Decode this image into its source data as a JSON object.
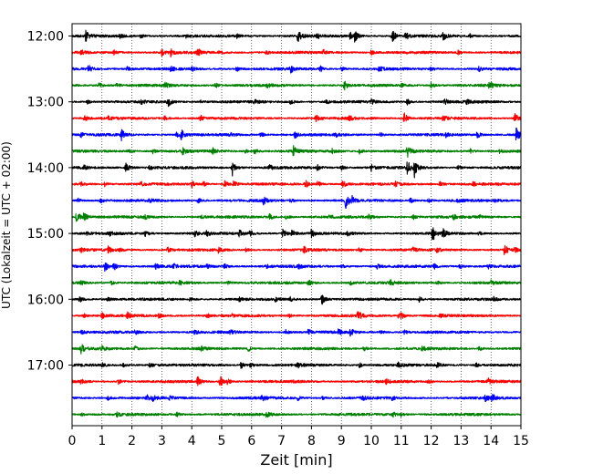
{
  "chart_data": {
    "type": "line",
    "chart_kind": "seismic helicorder (drum plot)",
    "title": "",
    "xlabel": "Zeit  [min]",
    "ylabel": "UTC (Lokalzeit = UTC + 02:00)",
    "xlim": [
      0,
      15
    ],
    "x_ticks": [
      0,
      1,
      2,
      3,
      4,
      5,
      6,
      7,
      8,
      9,
      10,
      11,
      12,
      13,
      14,
      15
    ],
    "x_tick_labels": [
      "0",
      "1",
      "2",
      "3",
      "4",
      "5",
      "6",
      "7",
      "8",
      "9",
      "10",
      "11",
      "12",
      "13",
      "14",
      "15"
    ],
    "y_ticks": [
      {
        "label": "12:00",
        "minutes_after_start": 0
      },
      {
        "label": "13:00",
        "minutes_after_start": 60
      },
      {
        "label": "14:00",
        "minutes_after_start": 120
      },
      {
        "label": "15:00",
        "minutes_after_start": 180
      },
      {
        "label": "16:00",
        "minutes_after_start": 240
      },
      {
        "label": "17:00",
        "minutes_after_start": 300
      }
    ],
    "row_minutes": 15,
    "grid": {
      "vertical_dotted_each_minute": true,
      "horizontal": false
    },
    "trace_colors": [
      "#000000",
      "#ff0000",
      "#0000ff",
      "#008000"
    ],
    "traces": [
      {
        "start": "12:00",
        "color_index": 0,
        "events": [
          [
            0.45,
            0.9
          ],
          [
            1.6,
            0.3
          ],
          [
            2.3,
            0.3
          ],
          [
            3.8,
            0.25
          ],
          [
            5.5,
            0.3
          ],
          [
            7.55,
            0.9
          ],
          [
            8.2,
            0.35
          ],
          [
            9.3,
            0.5
          ],
          [
            9.45,
            0.8
          ],
          [
            10.7,
            1.0
          ],
          [
            11.15,
            0.6
          ],
          [
            12.4,
            0.6
          ],
          [
            13.3,
            0.3
          ]
        ]
      },
      {
        "start": "12:15",
        "color_index": 1,
        "events": [
          [
            0.3,
            0.3
          ],
          [
            1.4,
            0.3
          ],
          [
            3.0,
            0.45
          ],
          [
            3.3,
            0.6
          ],
          [
            4.2,
            0.55
          ],
          [
            4.9,
            0.3
          ],
          [
            6.5,
            0.3
          ],
          [
            8.4,
            0.35
          ],
          [
            10.0,
            0.3
          ],
          [
            12.9,
            0.3
          ]
        ]
      },
      {
        "start": "12:30",
        "color_index": 2,
        "events": [
          [
            0.55,
            0.6
          ],
          [
            1.85,
            0.35
          ],
          [
            3.3,
            0.35
          ],
          [
            4.0,
            0.4
          ],
          [
            5.5,
            0.4
          ],
          [
            7.3,
            0.55
          ],
          [
            8.3,
            0.4
          ],
          [
            9.0,
            0.35
          ],
          [
            10.25,
            0.4
          ],
          [
            12.0,
            0.35
          ],
          [
            13.6,
            0.35
          ]
        ]
      },
      {
        "start": "12:45",
        "color_index": 3,
        "events": [
          [
            0.9,
            0.45
          ],
          [
            1.5,
            0.3
          ],
          [
            3.1,
            0.4
          ],
          [
            4.8,
            0.35
          ],
          [
            6.5,
            0.35
          ],
          [
            9.1,
            0.7
          ],
          [
            11.0,
            0.3
          ],
          [
            12.0,
            0.45
          ],
          [
            13.95,
            0.55
          ]
        ]
      },
      {
        "start": "13:00",
        "color_index": 0,
        "events": [
          [
            0.5,
            0.3
          ],
          [
            2.3,
            0.3
          ],
          [
            3.2,
            0.8
          ],
          [
            4.3,
            0.3
          ],
          [
            6.1,
            0.3
          ],
          [
            7.3,
            0.45
          ],
          [
            8.5,
            0.3
          ],
          [
            10.0,
            0.3
          ],
          [
            11.2,
            0.4
          ],
          [
            12.45,
            0.5
          ],
          [
            13.2,
            0.3
          ]
        ]
      },
      {
        "start": "13:15",
        "color_index": 1,
        "events": [
          [
            0.4,
            0.6
          ],
          [
            1.2,
            0.3
          ],
          [
            3.1,
            0.3
          ],
          [
            4.3,
            0.4
          ],
          [
            8.15,
            0.5
          ],
          [
            9.25,
            0.35
          ],
          [
            11.1,
            0.85
          ],
          [
            12.4,
            0.3
          ],
          [
            14.8,
            0.9
          ]
        ]
      },
      {
        "start": "13:30",
        "color_index": 2,
        "events": [
          [
            0.3,
            0.35
          ],
          [
            1.65,
            0.9
          ],
          [
            3.5,
            0.35
          ],
          [
            3.65,
            0.9
          ],
          [
            5.3,
            0.3
          ],
          [
            6.3,
            0.4
          ],
          [
            7.45,
            0.5
          ],
          [
            8.8,
            0.3
          ],
          [
            10.3,
            0.35
          ],
          [
            12.5,
            0.35
          ],
          [
            13.55,
            0.6
          ],
          [
            14.85,
            1.0
          ]
        ]
      },
      {
        "start": "13:45",
        "color_index": 3,
        "events": [
          [
            1.9,
            0.4
          ],
          [
            2.7,
            0.3
          ],
          [
            3.7,
            0.45
          ],
          [
            4.7,
            0.5
          ],
          [
            5.8,
            0.3
          ],
          [
            6.1,
            0.45
          ],
          [
            7.4,
            0.7
          ],
          [
            8.7,
            0.4
          ],
          [
            9.6,
            0.4
          ],
          [
            11.2,
            0.9
          ],
          [
            13.3,
            0.35
          ],
          [
            14.3,
            0.3
          ]
        ]
      },
      {
        "start": "14:00",
        "color_index": 0,
        "events": [
          [
            0.4,
            0.3
          ],
          [
            1.8,
            0.95
          ],
          [
            2.6,
            0.35
          ],
          [
            5.35,
            1.4
          ],
          [
            6.6,
            0.4
          ],
          [
            8.2,
            0.4
          ],
          [
            9.0,
            0.35
          ],
          [
            10.0,
            0.5
          ],
          [
            11.2,
            1.2
          ],
          [
            11.45,
            1.6
          ],
          [
            12.9,
            0.4
          ]
        ]
      },
      {
        "start": "14:15",
        "color_index": 1,
        "events": [
          [
            0.3,
            0.3
          ],
          [
            1.1,
            0.35
          ],
          [
            2.3,
            0.35
          ],
          [
            4.0,
            0.55
          ],
          [
            4.4,
            0.4
          ],
          [
            5.1,
            0.5
          ],
          [
            5.4,
            0.4
          ],
          [
            7.8,
            0.6
          ],
          [
            8.2,
            0.45
          ],
          [
            9.05,
            0.5
          ],
          [
            10.8,
            0.4
          ],
          [
            12.3,
            0.35
          ],
          [
            13.4,
            0.35
          ]
        ]
      },
      {
        "start": "14:30",
        "color_index": 2,
        "events": [
          [
            0.2,
            0.3
          ],
          [
            0.95,
            0.35
          ],
          [
            2.6,
            0.3
          ],
          [
            4.2,
            0.4
          ],
          [
            6.4,
            0.6
          ],
          [
            7.3,
            0.35
          ],
          [
            9.15,
            1.2
          ],
          [
            9.35,
            0.55
          ],
          [
            11.3,
            0.4
          ],
          [
            11.9,
            0.35
          ],
          [
            12.9,
            0.35
          ],
          [
            14.1,
            0.3
          ]
        ]
      },
      {
        "start": "14:45",
        "color_index": 3,
        "events": [
          [
            0.15,
            1.0
          ],
          [
            0.4,
            0.6
          ],
          [
            2.4,
            0.4
          ],
          [
            4.3,
            0.3
          ],
          [
            6.6,
            0.45
          ],
          [
            7.15,
            0.35
          ],
          [
            8.6,
            0.35
          ],
          [
            9.9,
            0.35
          ],
          [
            11.4,
            0.35
          ],
          [
            12.75,
            0.45
          ],
          [
            13.6,
            0.35
          ]
        ]
      },
      {
        "start": "15:00",
        "color_index": 0,
        "events": [
          [
            0.5,
            0.3
          ],
          [
            1.25,
            0.3
          ],
          [
            2.45,
            0.4
          ],
          [
            4.1,
            0.4
          ],
          [
            4.5,
            0.35
          ],
          [
            5.6,
            0.55
          ],
          [
            5.95,
            0.5
          ],
          [
            7.05,
            0.75
          ],
          [
            7.35,
            0.55
          ],
          [
            8.0,
            0.6
          ],
          [
            9.2,
            0.4
          ],
          [
            12.05,
            1.2
          ],
          [
            12.4,
            0.6
          ],
          [
            13.6,
            0.3
          ]
        ]
      },
      {
        "start": "15:15",
        "color_index": 1,
        "events": [
          [
            0.3,
            0.3
          ],
          [
            1.2,
            0.75
          ],
          [
            1.6,
            0.35
          ],
          [
            3.2,
            0.35
          ],
          [
            4.9,
            0.4
          ],
          [
            5.8,
            0.3
          ],
          [
            7.75,
            0.4
          ],
          [
            9.6,
            0.35
          ],
          [
            11.4,
            0.3
          ],
          [
            12.2,
            0.35
          ],
          [
            14.45,
            0.9
          ],
          [
            14.8,
            0.4
          ]
        ]
      },
      {
        "start": "15:30",
        "color_index": 2,
        "events": [
          [
            1.1,
            0.75
          ],
          [
            1.4,
            0.55
          ],
          [
            2.8,
            0.4
          ],
          [
            3.4,
            0.35
          ],
          [
            4.5,
            0.3
          ],
          [
            5.1,
            0.45
          ],
          [
            6.5,
            0.3
          ],
          [
            7.55,
            0.35
          ],
          [
            9.0,
            0.3
          ],
          [
            10.2,
            0.3
          ],
          [
            12.1,
            0.35
          ],
          [
            12.95,
            0.4
          ],
          [
            13.9,
            0.3
          ]
        ]
      },
      {
        "start": "15:45",
        "color_index": 3,
        "events": [
          [
            0.3,
            0.3
          ],
          [
            1.3,
            0.3
          ],
          [
            3.6,
            0.3
          ],
          [
            5.2,
            0.3
          ],
          [
            7.9,
            0.55
          ],
          [
            9.3,
            0.3
          ],
          [
            10.65,
            0.35
          ],
          [
            12.2,
            0.3
          ],
          [
            14.0,
            0.3
          ]
        ]
      },
      {
        "start": "16:00",
        "color_index": 0,
        "events": [
          [
            0.25,
            0.45
          ],
          [
            1.2,
            0.3
          ],
          [
            3.95,
            0.3
          ],
          [
            5.6,
            0.3
          ],
          [
            6.8,
            0.3
          ],
          [
            7.3,
            0.3
          ],
          [
            8.35,
            0.8
          ],
          [
            11.6,
            0.45
          ],
          [
            14.1,
            0.3
          ]
        ]
      },
      {
        "start": "16:15",
        "color_index": 1,
        "events": [
          [
            0.4,
            0.3
          ],
          [
            1.0,
            0.4
          ],
          [
            1.85,
            0.45
          ],
          [
            2.9,
            0.3
          ],
          [
            4.5,
            0.35
          ],
          [
            5.3,
            0.3
          ],
          [
            7.25,
            0.3
          ],
          [
            9.55,
            0.85
          ],
          [
            10.9,
            0.35
          ],
          [
            11.0,
            0.5
          ],
          [
            12.3,
            0.3
          ]
        ]
      },
      {
        "start": "16:30",
        "color_index": 2,
        "events": [
          [
            0.3,
            0.3
          ],
          [
            2.1,
            0.3
          ],
          [
            4.1,
            0.3
          ],
          [
            5.3,
            0.35
          ],
          [
            7.15,
            0.35
          ],
          [
            7.9,
            0.4
          ],
          [
            8.9,
            0.45
          ],
          [
            9.3,
            0.5
          ],
          [
            10.3,
            0.3
          ],
          [
            11.1,
            0.3
          ]
        ]
      },
      {
        "start": "16:45",
        "color_index": 3,
        "events": [
          [
            0.3,
            0.75
          ],
          [
            1.0,
            0.3
          ],
          [
            2.1,
            0.35
          ],
          [
            4.3,
            0.3
          ],
          [
            5.9,
            0.35
          ],
          [
            9.75,
            0.35
          ],
          [
            11.7,
            0.3
          ],
          [
            13.6,
            0.3
          ]
        ]
      },
      {
        "start": "17:00",
        "color_index": 0,
        "events": [
          [
            1.0,
            0.3
          ],
          [
            1.7,
            0.3
          ],
          [
            2.6,
            0.35
          ],
          [
            5.65,
            0.5
          ],
          [
            5.95,
            0.4
          ],
          [
            7.55,
            0.35
          ],
          [
            9.6,
            0.35
          ],
          [
            10.9,
            0.3
          ],
          [
            12.2,
            0.5
          ],
          [
            13.5,
            0.3
          ]
        ]
      },
      {
        "start": "17:15",
        "color_index": 1,
        "events": [
          [
            0.3,
            0.3
          ],
          [
            1.55,
            0.35
          ],
          [
            4.2,
            0.75
          ],
          [
            4.95,
            0.85
          ],
          [
            5.2,
            0.4
          ],
          [
            7.4,
            0.3
          ],
          [
            10.5,
            0.3
          ],
          [
            11.9,
            0.3
          ],
          [
            13.9,
            0.45
          ]
        ]
      },
      {
        "start": "17:30",
        "color_index": 2,
        "events": [
          [
            1.2,
            0.35
          ],
          [
            2.5,
            0.4
          ],
          [
            2.7,
            0.35
          ],
          [
            3.25,
            0.3
          ],
          [
            6.35,
            0.6
          ],
          [
            7.55,
            0.3
          ],
          [
            8.35,
            0.3
          ],
          [
            9.7,
            0.35
          ],
          [
            10.7,
            0.3
          ],
          [
            13.8,
            0.55
          ],
          [
            14.05,
            0.5
          ]
        ]
      },
      {
        "start": "17:45",
        "color_index": 3,
        "events": [
          [
            0.3,
            0.25
          ],
          [
            1.5,
            0.3
          ],
          [
            3.5,
            0.3
          ],
          [
            6.5,
            0.45
          ],
          [
            10.7,
            0.5
          ],
          [
            11.0,
            0.3
          ]
        ]
      }
    ]
  }
}
